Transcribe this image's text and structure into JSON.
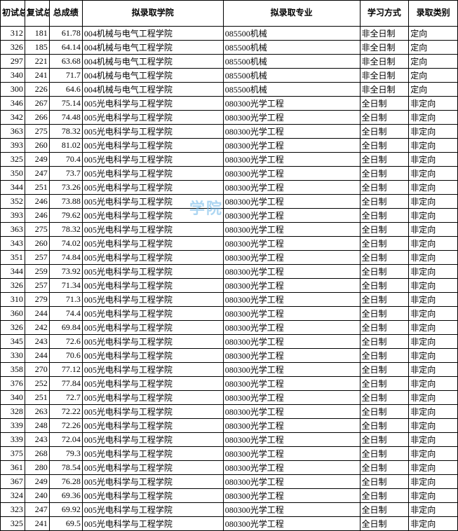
{
  "headers": {
    "c1": "初试总成绩",
    "c2": "复试总成绩",
    "c3": "总成绩",
    "c4": "拟录取学院",
    "c5": "拟录取专业",
    "c6": "学习方式",
    "c7": "录取类别"
  },
  "rows": [
    {
      "c1": "312",
      "c2": "181",
      "c3": "61.78",
      "c4": "004机械与电气工程学院",
      "c5": "085500机械",
      "c6": "非全日制",
      "c7": "定向"
    },
    {
      "c1": "326",
      "c2": "185",
      "c3": "64.14",
      "c4": "004机械与电气工程学院",
      "c5": "085500机械",
      "c6": "非全日制",
      "c7": "定向"
    },
    {
      "c1": "297",
      "c2": "221",
      "c3": "63.68",
      "c4": "004机械与电气工程学院",
      "c5": "085500机械",
      "c6": "非全日制",
      "c7": "定向"
    },
    {
      "c1": "340",
      "c2": "241",
      "c3": "71.7",
      "c4": "004机械与电气工程学院",
      "c5": "085500机械",
      "c6": "非全日制",
      "c7": "定向"
    },
    {
      "c1": "300",
      "c2": "226",
      "c3": "64.6",
      "c4": "004机械与电气工程学院",
      "c5": "085500机械",
      "c6": "非全日制",
      "c7": "定向"
    },
    {
      "c1": "346",
      "c2": "267",
      "c3": "75.14",
      "c4": "005光电科学与工程学院",
      "c5": "080300光学工程",
      "c6": "全日制",
      "c7": "非定向"
    },
    {
      "c1": "342",
      "c2": "266",
      "c3": "74.48",
      "c4": "005光电科学与工程学院",
      "c5": "080300光学工程",
      "c6": "全日制",
      "c7": "非定向"
    },
    {
      "c1": "363",
      "c2": "275",
      "c3": "78.32",
      "c4": "005光电科学与工程学院",
      "c5": "080300光学工程",
      "c6": "全日制",
      "c7": "非定向"
    },
    {
      "c1": "393",
      "c2": "260",
      "c3": "81.02",
      "c4": "005光电科学与工程学院",
      "c5": "080300光学工程",
      "c6": "全日制",
      "c7": "非定向"
    },
    {
      "c1": "325",
      "c2": "249",
      "c3": "70.4",
      "c4": "005光电科学与工程学院",
      "c5": "080300光学工程",
      "c6": "全日制",
      "c7": "非定向"
    },
    {
      "c1": "350",
      "c2": "247",
      "c3": "73.7",
      "c4": "005光电科学与工程学院",
      "c5": "080300光学工程",
      "c6": "全日制",
      "c7": "非定向"
    },
    {
      "c1": "344",
      "c2": "251",
      "c3": "73.26",
      "c4": "005光电科学与工程学院",
      "c5": "080300光学工程",
      "c6": "全日制",
      "c7": "非定向"
    },
    {
      "c1": "352",
      "c2": "246",
      "c3": "73.88",
      "c4": "005光电科学与工程学院",
      "c5": "080300光学工程",
      "c6": "全日制",
      "c7": "非定向"
    },
    {
      "c1": "393",
      "c2": "246",
      "c3": "79.62",
      "c4": "005光电科学与工程学院",
      "c5": "080300光学工程",
      "c6": "全日制",
      "c7": "非定向"
    },
    {
      "c1": "363",
      "c2": "275",
      "c3": "78.32",
      "c4": "005光电科学与工程学院",
      "c5": "080300光学工程",
      "c6": "全日制",
      "c7": "非定向"
    },
    {
      "c1": "343",
      "c2": "260",
      "c3": "74.02",
      "c4": "005光电科学与工程学院",
      "c5": "080300光学工程",
      "c6": "全日制",
      "c7": "非定向"
    },
    {
      "c1": "351",
      "c2": "257",
      "c3": "74.84",
      "c4": "005光电科学与工程学院",
      "c5": "080300光学工程",
      "c6": "全日制",
      "c7": "非定向"
    },
    {
      "c1": "344",
      "c2": "259",
      "c3": "73.92",
      "c4": "005光电科学与工程学院",
      "c5": "080300光学工程",
      "c6": "全日制",
      "c7": "非定向"
    },
    {
      "c1": "326",
      "c2": "257",
      "c3": "71.34",
      "c4": "005光电科学与工程学院",
      "c5": "080300光学工程",
      "c6": "全日制",
      "c7": "非定向"
    },
    {
      "c1": "310",
      "c2": "279",
      "c3": "71.3",
      "c4": "005光电科学与工程学院",
      "c5": "080300光学工程",
      "c6": "全日制",
      "c7": "非定向"
    },
    {
      "c1": "360",
      "c2": "244",
      "c3": "74.4",
      "c4": "005光电科学与工程学院",
      "c5": "080300光学工程",
      "c6": "全日制",
      "c7": "非定向"
    },
    {
      "c1": "326",
      "c2": "242",
      "c3": "69.84",
      "c4": "005光电科学与工程学院",
      "c5": "080300光学工程",
      "c6": "全日制",
      "c7": "非定向"
    },
    {
      "c1": "345",
      "c2": "243",
      "c3": "72.6",
      "c4": "005光电科学与工程学院",
      "c5": "080300光学工程",
      "c6": "全日制",
      "c7": "非定向"
    },
    {
      "c1": "330",
      "c2": "244",
      "c3": "70.6",
      "c4": "005光电科学与工程学院",
      "c5": "080300光学工程",
      "c6": "全日制",
      "c7": "非定向"
    },
    {
      "c1": "358",
      "c2": "270",
      "c3": "77.12",
      "c4": "005光电科学与工程学院",
      "c5": "080300光学工程",
      "c6": "全日制",
      "c7": "非定向"
    },
    {
      "c1": "376",
      "c2": "252",
      "c3": "77.84",
      "c4": "005光电科学与工程学院",
      "c5": "080300光学工程",
      "c6": "全日制",
      "c7": "非定向"
    },
    {
      "c1": "340",
      "c2": "251",
      "c3": "72.7",
      "c4": "005光电科学与工程学院",
      "c5": "080300光学工程",
      "c6": "全日制",
      "c7": "非定向"
    },
    {
      "c1": "328",
      "c2": "263",
      "c3": "72.22",
      "c4": "005光电科学与工程学院",
      "c5": "080300光学工程",
      "c6": "全日制",
      "c7": "非定向"
    },
    {
      "c1": "339",
      "c2": "248",
      "c3": "72.26",
      "c4": "005光电科学与工程学院",
      "c5": "080300光学工程",
      "c6": "全日制",
      "c7": "非定向"
    },
    {
      "c1": "339",
      "c2": "243",
      "c3": "72.04",
      "c4": "005光电科学与工程学院",
      "c5": "080300光学工程",
      "c6": "全日制",
      "c7": "非定向"
    },
    {
      "c1": "375",
      "c2": "268",
      "c3": "79.3",
      "c4": "005光电科学与工程学院",
      "c5": "080300光学工程",
      "c6": "全日制",
      "c7": "非定向"
    },
    {
      "c1": "361",
      "c2": "280",
      "c3": "78.54",
      "c4": "005光电科学与工程学院",
      "c5": "080300光学工程",
      "c6": "全日制",
      "c7": "非定向"
    },
    {
      "c1": "367",
      "c2": "249",
      "c3": "76.28",
      "c4": "005光电科学与工程学院",
      "c5": "080300光学工程",
      "c6": "全日制",
      "c7": "非定向"
    },
    {
      "c1": "324",
      "c2": "240",
      "c3": "69.36",
      "c4": "005光电科学与工程学院",
      "c5": "080300光学工程",
      "c6": "全日制",
      "c7": "非定向"
    },
    {
      "c1": "323",
      "c2": "247",
      "c3": "69.92",
      "c4": "005光电科学与工程学院",
      "c5": "080300光学工程",
      "c6": "全日制",
      "c7": "非定向"
    },
    {
      "c1": "325",
      "c2": "241",
      "c3": "69.5",
      "c4": "005光电科学与工程学院",
      "c5": "080300光学工程",
      "c6": "全日制",
      "c7": "非定向"
    }
  ]
}
